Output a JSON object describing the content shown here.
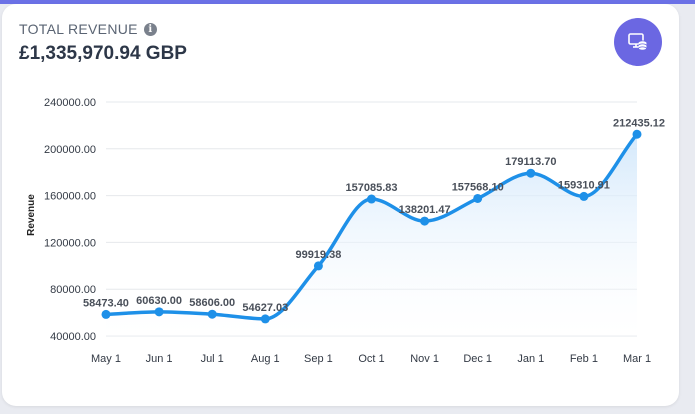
{
  "header": {
    "title": "TOTAL REVENUE",
    "info_icon": "info-icon",
    "amount": "£1,335,970.94 GBP",
    "action_icon": "monitor-coins-icon"
  },
  "colors": {
    "accent": "#6b67e2",
    "line": "#1e90e8",
    "area_top": "#cfe6fb",
    "area_bottom": "#ffffff",
    "grid": "#e6e8ec"
  },
  "chart_data": {
    "type": "area",
    "title": "",
    "xlabel": "",
    "ylabel": "Revenue",
    "categories": [
      "May 1",
      "Jun 1",
      "Jul 1",
      "Aug 1",
      "Sep 1",
      "Oct 1",
      "Nov 1",
      "Dec 1",
      "Jan 1",
      "Feb 1",
      "Mar 1"
    ],
    "values": [
      58473.4,
      60630.0,
      58606.0,
      54627.03,
      99919.38,
      157085.83,
      138201.47,
      157568.1,
      179113.7,
      159310.91,
      212435.12
    ],
    "value_labels": [
      "58473.40",
      "60630.00",
      "58606.00",
      "54627.03",
      "99919.38",
      "157085.83",
      "138201.47",
      "157568.10",
      "179113.70",
      "159310.91",
      "212435.12"
    ],
    "ylim": [
      40000,
      240000
    ],
    "yticks": [
      40000,
      80000,
      120000,
      160000,
      200000,
      240000
    ],
    "ytick_labels": [
      "40000.00",
      "80000.00",
      "120000.00",
      "160000.00",
      "200000.00",
      "240000.00"
    ],
    "grid": true,
    "smooth": true
  }
}
